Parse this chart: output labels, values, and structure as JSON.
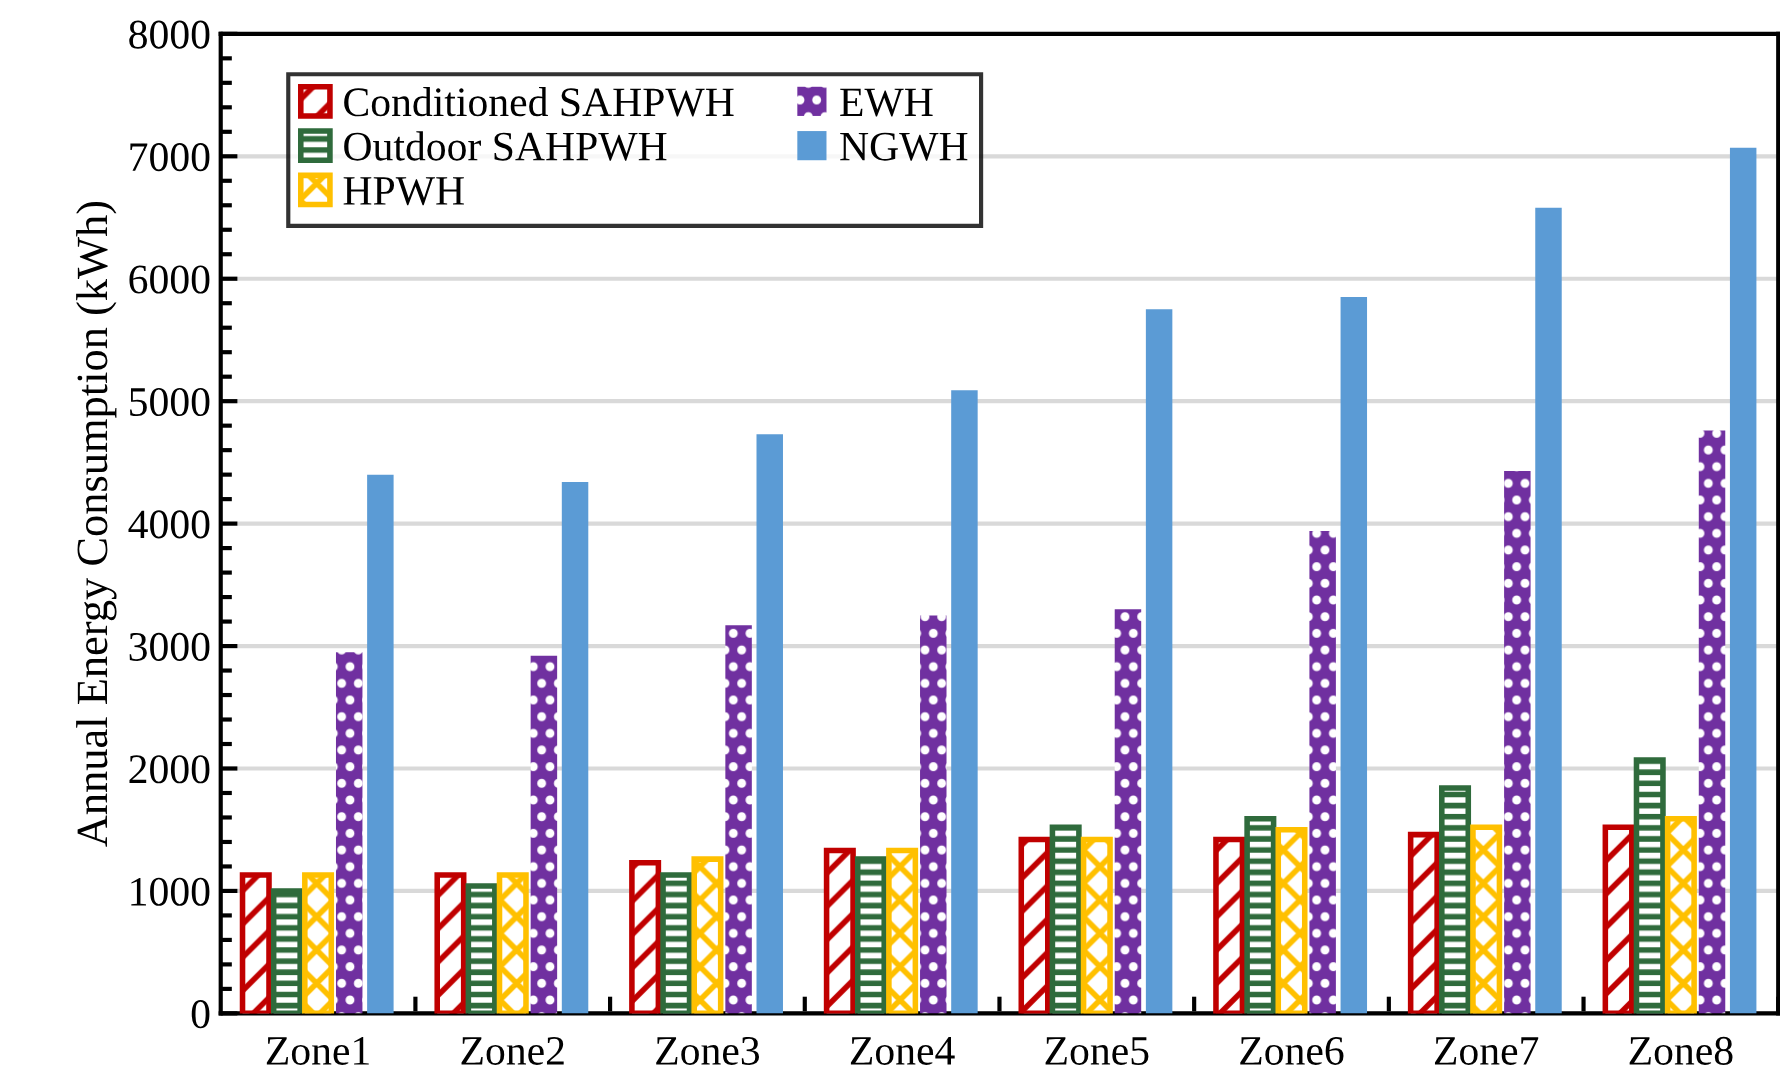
{
  "chart_data": {
    "type": "bar",
    "ylabel": "Annual Energy Consumption (kWh)",
    "categories": [
      "Zone1",
      "Zone2",
      "Zone3",
      "Zone4",
      "Zone5",
      "Zone6",
      "Zone7",
      "Zone8"
    ],
    "series": [
      {
        "name": "Conditioned SAHPWH",
        "color": "#c00000",
        "values": [
          1130,
          1130,
          1230,
          1330,
          1420,
          1420,
          1460,
          1520
        ]
      },
      {
        "name": "Outdoor SAHPWH",
        "color": "#2f6b3c",
        "values": [
          1000,
          1040,
          1130,
          1260,
          1520,
          1590,
          1840,
          2070
        ]
      },
      {
        "name": "HPWH",
        "color": "#ffc000",
        "values": [
          1130,
          1130,
          1260,
          1330,
          1420,
          1500,
          1520,
          1590
        ]
      },
      {
        "name": "EWH",
        "color": "#7030a0",
        "values": [
          2950,
          2920,
          3170,
          3250,
          3300,
          3940,
          4430,
          4760
        ]
      },
      {
        "name": "NGWH",
        "color": "#5b9bd5",
        "values": [
          4400,
          4340,
          4730,
          5090,
          5750,
          5850,
          6580,
          7070
        ]
      }
    ],
    "ylim": [
      0,
      8000
    ],
    "yticks": [
      0,
      1000,
      2000,
      3000,
      4000,
      5000,
      6000,
      7000,
      8000
    ],
    "grid": "y",
    "legend": "top left"
  }
}
